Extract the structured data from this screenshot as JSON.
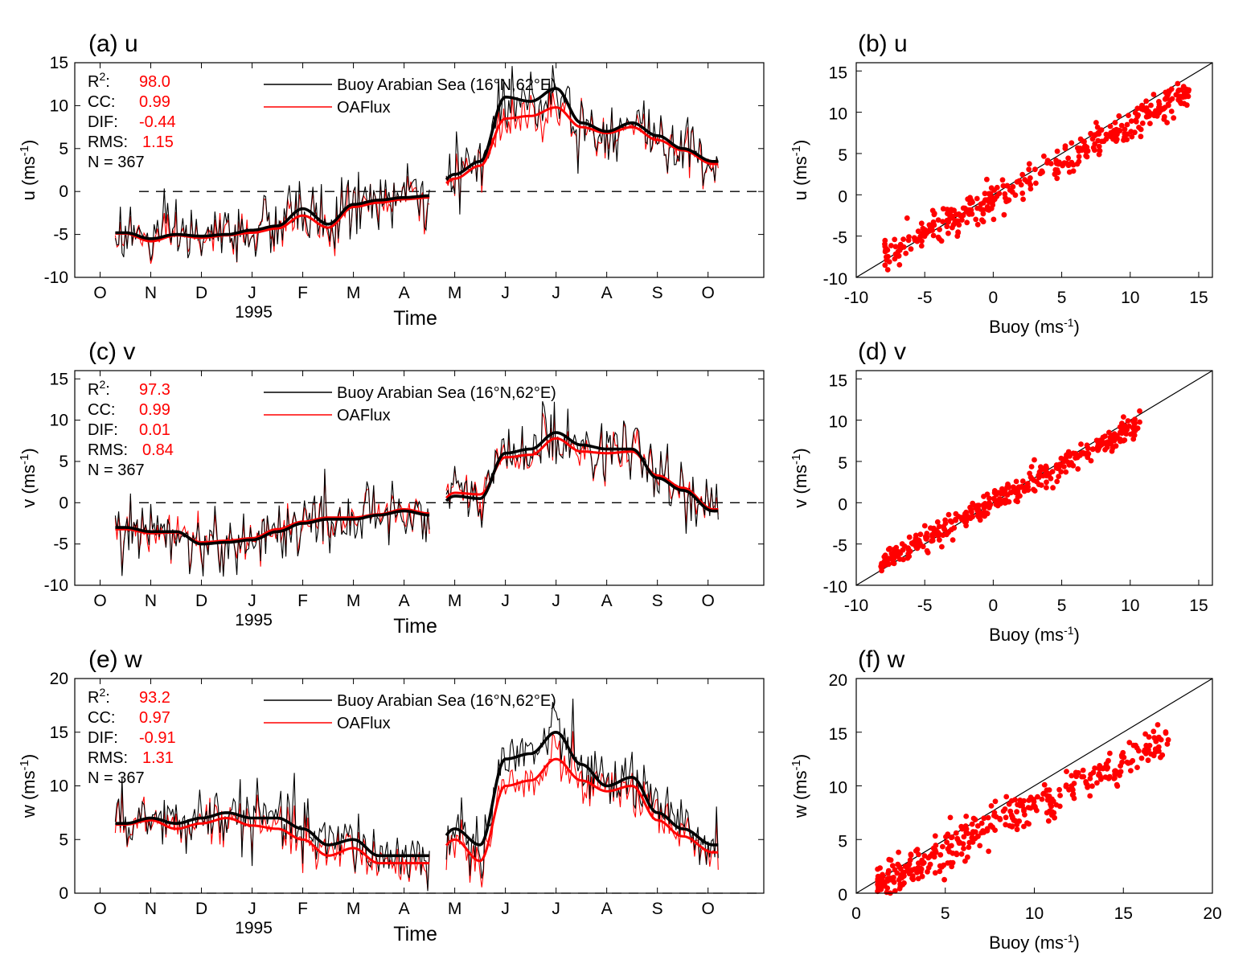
{
  "chart_data": [
    {
      "id": "a",
      "type": "line",
      "title": "(a)  u",
      "xlabel": "Time",
      "year_label": "1995",
      "ylabel": "u",
      "yunit": "(ms",
      "yunit_sup": "-1",
      "yunit_close": ")",
      "ylim": [
        -10,
        15
      ],
      "yticks": [
        15,
        10,
        5,
        0,
        -5,
        -10
      ],
      "xlim": [
        0,
        13.6
      ],
      "month_ticks": [
        "O",
        "N",
        "D",
        "J",
        "F",
        "M",
        "A",
        "M",
        "J",
        "J",
        "A",
        "S",
        "O"
      ],
      "zero_line": 0,
      "stats": [
        {
          "key": "R",
          "sup": "2",
          "suffix": ":",
          "value": "98.0"
        },
        {
          "key": "CC:",
          "value": "0.99"
        },
        {
          "key": "DIF:",
          "value": "-0.44"
        },
        {
          "key": "RMS:",
          "value": "1.15"
        },
        {
          "key": "N = 367",
          "value": ""
        }
      ],
      "legend": [
        "Buoy Arabian Sea (16°N,62°E)",
        "OAFlux"
      ],
      "series": [
        {
          "name": "Buoy smooth",
          "gap": [
            7.0,
            7.3
          ],
          "x": [
            1.0,
            1.5,
            2.0,
            2.5,
            3.0,
            3.5,
            4.0,
            4.5,
            5.0,
            5.5,
            6.0,
            6.5,
            7.0,
            7.5,
            8.0,
            8.5,
            9.0,
            9.5,
            10.0,
            10.5,
            11.0,
            11.5,
            12.0,
            12.6
          ],
          "y": [
            -4.8,
            -5.5,
            -5.0,
            -5.2,
            -5.0,
            -4.5,
            -4.0,
            -2.0,
            -3.8,
            -1.5,
            -1.0,
            -0.7,
            -0.5,
            2.0,
            3.5,
            11.0,
            10.5,
            12.0,
            8.0,
            7.0,
            8.0,
            6.5,
            5.0,
            3.5
          ]
        },
        {
          "name": "OAFlux smooth",
          "gap": [
            7.0,
            7.3
          ],
          "x": [
            1.0,
            1.5,
            2.0,
            2.5,
            3.0,
            3.5,
            4.0,
            4.5,
            5.0,
            5.5,
            6.0,
            6.5,
            7.0,
            7.5,
            8.0,
            8.5,
            9.0,
            9.5,
            10.0,
            10.5,
            11.0,
            11.5,
            12.0,
            12.6
          ],
          "y": [
            -4.9,
            -5.8,
            -5.1,
            -5.4,
            -5.1,
            -4.8,
            -4.3,
            -2.8,
            -4.2,
            -1.8,
            -1.3,
            -0.9,
            -0.7,
            1.5,
            3.0,
            8.5,
            8.8,
            9.8,
            7.5,
            6.8,
            7.5,
            6.0,
            4.8,
            3.2
          ]
        }
      ]
    },
    {
      "id": "b",
      "type": "scatter",
      "title": "(b)  u",
      "xlabel": "Buoy",
      "xunit": "(ms",
      "xunit_sup": "-1",
      "xunit_close": ")",
      "ylabel": "u",
      "yunit": "(ms",
      "yunit_sup": "-1",
      "yunit_close": ")",
      "xlim": [
        -10,
        16
      ],
      "ylim": [
        -10,
        16
      ],
      "xticks": [
        -10,
        -5,
        0,
        5,
        10,
        15
      ],
      "yticks": [
        15,
        10,
        5,
        0,
        -5,
        -10
      ],
      "fit": {
        "slope": 0.89,
        "intercept": -0.3,
        "spread": 0.9,
        "xrange": [
          -8,
          14.3
        ]
      }
    },
    {
      "id": "c",
      "type": "line",
      "title": "(c)  v",
      "xlabel": "Time",
      "year_label": "1995",
      "ylabel": "v",
      "yunit": "(ms",
      "yunit_sup": "-1",
      "yunit_close": ")",
      "ylim": [
        -10,
        16
      ],
      "yticks": [
        15,
        10,
        5,
        0,
        -5,
        -10
      ],
      "xlim": [
        0,
        13.6
      ],
      "month_ticks": [
        "O",
        "N",
        "D",
        "J",
        "F",
        "M",
        "A",
        "M",
        "J",
        "J",
        "A",
        "S",
        "O"
      ],
      "zero_line": 0,
      "stats": [
        {
          "key": "R",
          "sup": "2",
          "suffix": ":",
          "value": "97.3"
        },
        {
          "key": "CC:",
          "value": "0.99"
        },
        {
          "key": "DIF:",
          "value": "0.01"
        },
        {
          "key": "RMS:",
          "value": "0.84"
        },
        {
          "key": "N = 367",
          "value": ""
        }
      ],
      "legend": [
        "Buoy Arabian Sea (16°N,62°E)",
        "OAFlux"
      ],
      "series": [
        {
          "name": "Buoy smooth",
          "gap": [
            7.0,
            7.3
          ],
          "x": [
            1.0,
            1.5,
            2.0,
            2.5,
            3.0,
            3.5,
            4.0,
            4.5,
            5.0,
            5.5,
            6.0,
            6.5,
            7.0,
            7.5,
            8.0,
            8.5,
            9.0,
            9.5,
            10.0,
            10.5,
            11.0,
            11.5,
            12.0,
            12.6
          ],
          "y": [
            -3.0,
            -3.5,
            -3.5,
            -5.0,
            -4.8,
            -4.5,
            -3.5,
            -2.5,
            -2.0,
            -2.0,
            -1.5,
            -1.0,
            -1.5,
            0.8,
            0.5,
            6.0,
            6.5,
            8.5,
            7.0,
            6.5,
            6.5,
            3.0,
            1.5,
            -1.0
          ]
        },
        {
          "name": "OAFlux smooth",
          "gap": [
            7.0,
            7.3
          ],
          "x": [
            1.0,
            1.5,
            2.0,
            2.5,
            3.0,
            3.5,
            4.0,
            4.5,
            5.0,
            5.5,
            6.0,
            6.5,
            7.0,
            7.5,
            8.0,
            8.5,
            9.0,
            9.5,
            10.0,
            10.5,
            11.0,
            11.5,
            12.0,
            12.6
          ],
          "y": [
            -3.2,
            -3.7,
            -3.6,
            -4.8,
            -4.6,
            -4.3,
            -3.2,
            -2.3,
            -1.8,
            -1.8,
            -1.4,
            -0.8,
            -1.3,
            1.2,
            1.0,
            5.5,
            5.8,
            7.8,
            6.2,
            6.0,
            6.2,
            3.3,
            1.8,
            -0.8
          ]
        }
      ]
    },
    {
      "id": "d",
      "type": "scatter",
      "title": "(d)  v",
      "xlabel": "Buoy",
      "xunit": "(ms",
      "xunit_sup": "-1",
      "xunit_close": ")",
      "ylabel": "v",
      "yunit": "(ms",
      "yunit_sup": "-1",
      "yunit_close": ")",
      "xlim": [
        -10,
        16
      ],
      "ylim": [
        -10,
        16
      ],
      "xticks": [
        -10,
        -5,
        0,
        5,
        10,
        15
      ],
      "yticks": [
        15,
        10,
        5,
        0,
        -5,
        -10
      ],
      "fit": {
        "slope": 0.9,
        "intercept": 0.0,
        "spread": 0.7,
        "xrange": [
          -8.2,
          10.7
        ]
      }
    },
    {
      "id": "e",
      "type": "line",
      "title": "(e)  w",
      "xlabel": "Time",
      "year_label": "1995",
      "ylabel": "w",
      "yunit": "(ms",
      "yunit_sup": "-1",
      "yunit_close": ")",
      "ylim": [
        0,
        20
      ],
      "yticks": [
        20,
        15,
        10,
        5,
        0
      ],
      "xlim": [
        0,
        13.6
      ],
      "month_ticks": [
        "O",
        "N",
        "D",
        "J",
        "F",
        "M",
        "A",
        "M",
        "J",
        "J",
        "A",
        "S",
        "O"
      ],
      "zero_line": 0,
      "stats": [
        {
          "key": "R",
          "sup": "2",
          "suffix": ":",
          "value": "93.2"
        },
        {
          "key": "CC:",
          "value": "0.97"
        },
        {
          "key": "DIF:",
          "value": "-0.91"
        },
        {
          "key": "RMS:",
          "value": "1.31"
        },
        {
          "key": "N = 367",
          "value": ""
        }
      ],
      "legend": [
        "Buoy Arabian Sea (16°N,62°E)",
        "OAFlux"
      ],
      "series": [
        {
          "name": "Buoy smooth",
          "gap": [
            7.0,
            7.3
          ],
          "x": [
            1.0,
            1.5,
            2.0,
            2.5,
            3.0,
            3.5,
            4.0,
            4.5,
            5.0,
            5.5,
            6.0,
            6.5,
            7.0,
            7.5,
            8.0,
            8.5,
            9.0,
            9.5,
            10.0,
            10.5,
            11.0,
            11.5,
            12.0,
            12.6
          ],
          "y": [
            6.5,
            7.0,
            6.5,
            7.0,
            7.5,
            7.0,
            7.0,
            6.0,
            4.5,
            5.0,
            3.5,
            3.5,
            3.5,
            6.0,
            4.5,
            12.5,
            13.0,
            15.0,
            12.0,
            10.0,
            10.8,
            7.5,
            6.0,
            4.5
          ]
        },
        {
          "name": "OAFlux smooth",
          "gap": [
            7.0,
            7.3
          ],
          "x": [
            1.0,
            1.5,
            2.0,
            2.5,
            3.0,
            3.5,
            4.0,
            4.5,
            5.0,
            5.5,
            6.0,
            6.5,
            7.0,
            7.5,
            8.0,
            8.5,
            9.0,
            9.5,
            10.0,
            10.5,
            11.0,
            11.5,
            12.0,
            12.6
          ],
          "y": [
            6.4,
            6.8,
            6.0,
            6.5,
            7.0,
            6.3,
            6.0,
            5.0,
            3.5,
            4.2,
            2.8,
            2.8,
            2.8,
            5.0,
            3.0,
            10.0,
            10.5,
            12.5,
            10.5,
            9.5,
            10.0,
            6.8,
            5.3,
            3.8
          ]
        }
      ]
    },
    {
      "id": "f",
      "type": "scatter",
      "title": "(f)  w",
      "xlabel": "Buoy",
      "xunit": "(ms",
      "xunit_sup": "-1",
      "xunit_close": ")",
      "ylabel": "w",
      "yunit": "(ms",
      "yunit_sup": "-1",
      "yunit_close": ")",
      "xlim": [
        0,
        20
      ],
      "ylim": [
        0,
        20
      ],
      "xticks": [
        0,
        5,
        10,
        15,
        20
      ],
      "yticks": [
        20,
        15,
        10,
        5,
        0
      ],
      "fit": {
        "slope": 0.85,
        "intercept": -0.3,
        "spread": 0.9,
        "xrange": [
          1.2,
          17.6
        ]
      }
    }
  ],
  "colors": {
    "buoy": "#000000",
    "oaflux": "#ff0000",
    "identity": "#000000"
  }
}
